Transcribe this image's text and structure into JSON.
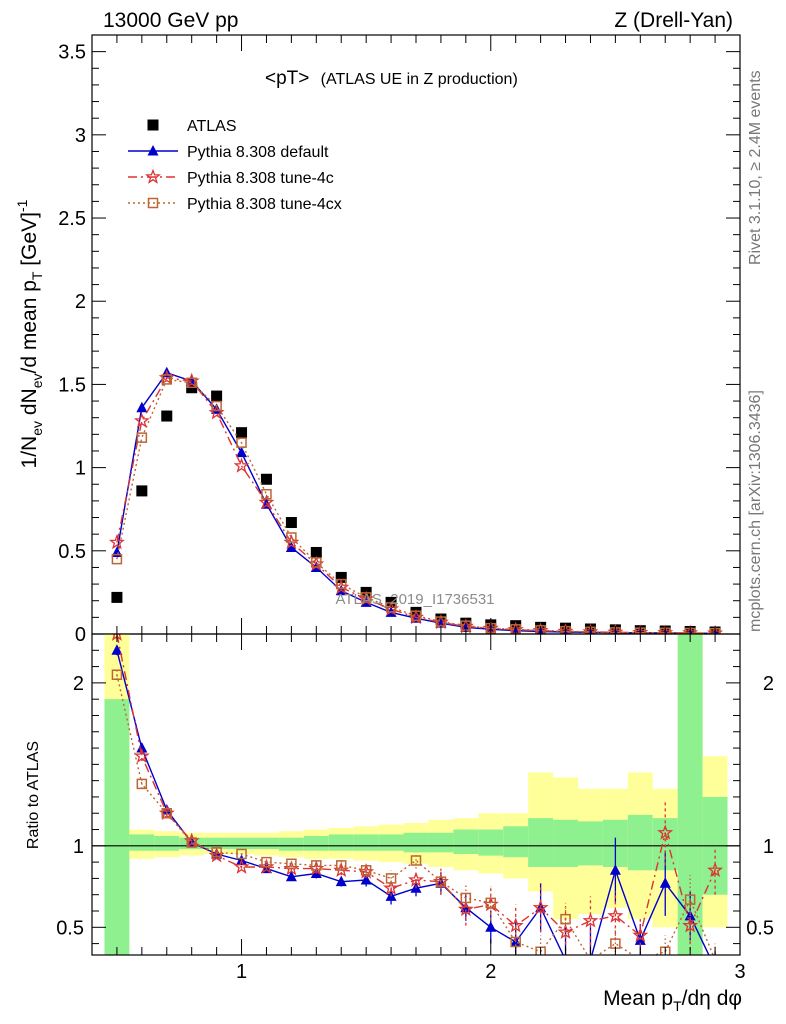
{
  "header": {
    "left": "13000 GeV pp",
    "right": "Z (Drell-Yan)"
  },
  "side_text": {
    "rivet": "Rivet 3.1.10, ≥ 2.4M events",
    "mcplots": "mcplots.cern.ch [arXiv:1306.3436]"
  },
  "watermark": "ATLAS_2019_I1736531",
  "colors": {
    "ATLAS": "#000000",
    "default": "#0000cc",
    "tune4c": "#dd3333",
    "tune4cx": "#bb6633",
    "band_inner": "#8ef08e",
    "band_outer": "#ffff99"
  },
  "chart_data": [
    {
      "type": "scatter",
      "panel": "main",
      "title_main": "<pT>",
      "title_sub": "(ATLAS UE in Z production)",
      "xlabel": "Mean p_T/dη dφ",
      "ylabel": "1/N_ev dN_ev/d mean p_T [GeV]^-1",
      "xlim": [
        0.4,
        3.0
      ],
      "ylim": [
        0,
        3.6
      ],
      "yticks": [
        "0",
        "0.5",
        "1",
        "1.5",
        "2",
        "2.5",
        "3",
        "3.5"
      ],
      "legend_position": "top-left",
      "x": [
        0.5,
        0.6,
        0.7,
        0.8,
        0.9,
        1.0,
        1.1,
        1.2,
        1.3,
        1.4,
        1.5,
        1.6,
        1.7,
        1.8,
        1.9,
        2.0,
        2.1,
        2.2,
        2.3,
        2.4,
        2.5,
        2.6,
        2.7,
        2.8,
        2.9
      ],
      "series": [
        {
          "name": "ATLAS",
          "key": "ATLAS",
          "marker": "square",
          "line": "none",
          "values": [
            0.22,
            0.86,
            1.31,
            1.48,
            1.43,
            1.21,
            0.93,
            0.67,
            0.49,
            0.34,
            0.25,
            0.19,
            0.13,
            0.09,
            0.065,
            0.055,
            0.05,
            0.04,
            0.035,
            0.03,
            0.025,
            0.02,
            0.018,
            0.015,
            0.012
          ]
        },
        {
          "name": "Pythia 8.308 default",
          "key": "default",
          "marker": "triangle",
          "line": "solid",
          "values": [
            0.49,
            1.36,
            1.57,
            1.52,
            1.35,
            1.09,
            0.78,
            0.52,
            0.4,
            0.26,
            0.19,
            0.13,
            0.095,
            0.065,
            0.04,
            0.028,
            0.02,
            0.015,
            0.012,
            0.01,
            0.008,
            0.007,
            0.006,
            0.005,
            0.004
          ]
        },
        {
          "name": "Pythia 8.308 tune-4c",
          "key": "tune4c",
          "marker": "star",
          "line": "dashdot",
          "values": [
            0.55,
            1.28,
            1.54,
            1.52,
            1.33,
            1.01,
            0.79,
            0.55,
            0.42,
            0.28,
            0.21,
            0.15,
            0.1,
            0.07,
            0.045,
            0.033,
            0.025,
            0.02,
            0.015,
            0.012,
            0.01,
            0.008,
            0.007,
            0.006,
            0.005
          ]
        },
        {
          "name": "Pythia 8.308 tune-4cx",
          "key": "tune4cx",
          "marker": "opensquare",
          "line": "dotted",
          "values": [
            0.45,
            1.18,
            1.53,
            1.51,
            1.37,
            1.15,
            0.84,
            0.58,
            0.43,
            0.3,
            0.22,
            0.16,
            0.11,
            0.075,
            0.05,
            0.035,
            0.028,
            0.022,
            0.017,
            0.013,
            0.01,
            0.008,
            0.007,
            0.006,
            0.005
          ]
        }
      ]
    },
    {
      "type": "line",
      "panel": "ratio",
      "ylabel": "Ratio to ATLAS",
      "xlim": [
        0.4,
        3.0
      ],
      "ylim": [
        0.33,
        2.3
      ],
      "yticks": [
        "0.5",
        "1",
        "2"
      ],
      "xticks": [
        "1",
        "2",
        "3"
      ],
      "bin_edges": [
        0.45,
        0.55,
        0.65,
        0.75,
        0.85,
        0.95,
        1.05,
        1.15,
        1.25,
        1.35,
        1.45,
        1.55,
        1.65,
        1.75,
        1.85,
        1.95,
        2.05,
        2.15,
        2.25,
        2.35,
        2.45,
        2.55,
        2.65,
        2.75,
        2.85,
        2.95
      ],
      "band_inner": [
        [
          0.25,
          1.9
        ],
        [
          0.97,
          1.07
        ],
        [
          0.97,
          1.06
        ],
        [
          0.98,
          1.05
        ],
        [
          0.98,
          1.05
        ],
        [
          0.98,
          1.05
        ],
        [
          0.98,
          1.05
        ],
        [
          0.97,
          1.05
        ],
        [
          0.97,
          1.06
        ],
        [
          0.97,
          1.07
        ],
        [
          0.97,
          1.07
        ],
        [
          0.97,
          1.07
        ],
        [
          0.96,
          1.08
        ],
        [
          0.96,
          1.08
        ],
        [
          0.95,
          1.1
        ],
        [
          0.94,
          1.1
        ],
        [
          0.93,
          1.12
        ],
        [
          0.87,
          1.17
        ],
        [
          0.87,
          1.16
        ],
        [
          0.88,
          1.15
        ],
        [
          0.87,
          1.16
        ],
        [
          0.85,
          1.19
        ],
        [
          0.85,
          1.17
        ],
        [
          0.33,
          2.3
        ],
        [
          0.7,
          1.3
        ],
        [
          0.7,
          1.23
        ]
      ],
      "band_outer": [
        [
          0.25,
          2.3
        ],
        [
          0.92,
          1.1
        ],
        [
          0.93,
          1.09
        ],
        [
          0.94,
          1.08
        ],
        [
          0.95,
          1.08
        ],
        [
          0.95,
          1.08
        ],
        [
          0.94,
          1.08
        ],
        [
          0.93,
          1.09
        ],
        [
          0.92,
          1.1
        ],
        [
          0.92,
          1.11
        ],
        [
          0.91,
          1.12
        ],
        [
          0.9,
          1.13
        ],
        [
          0.89,
          1.14
        ],
        [
          0.87,
          1.16
        ],
        [
          0.85,
          1.17
        ],
        [
          0.83,
          1.2
        ],
        [
          0.8,
          1.2
        ],
        [
          0.72,
          1.45
        ],
        [
          0.55,
          1.42
        ],
        [
          0.58,
          1.35
        ],
        [
          0.62,
          1.35
        ],
        [
          0.55,
          1.45
        ],
        [
          0.5,
          1.35
        ],
        [
          0.33,
          2.3
        ],
        [
          0.5,
          1.55
        ],
        [
          0.57,
          1.47
        ]
      ],
      "series": [
        {
          "name": "Pythia 8.308 default",
          "key": "default",
          "values": [
            2.2,
            1.6,
            1.22,
            1.02,
            0.95,
            0.91,
            0.86,
            0.81,
            0.83,
            0.78,
            0.79,
            0.69,
            0.74,
            0.77,
            0.62,
            0.5,
            0.41,
            0.62,
            0.3,
            0.3,
            0.85,
            0.42,
            0.77,
            0.57,
            0.25
          ],
          "errors": [
            0.03,
            0.03,
            0.02,
            0.01,
            0.01,
            0.01,
            0.02,
            0.02,
            0.03,
            0.03,
            0.04,
            0.05,
            0.05,
            0.07,
            0.08,
            0.1,
            0.13,
            0.15,
            0.2,
            0.2,
            0.2,
            0.1,
            0.2,
            0.15,
            0.1
          ]
        },
        {
          "name": "Pythia 8.308 tune-4c",
          "key": "tune4c",
          "values": [
            2.3,
            1.55,
            1.2,
            1.03,
            0.94,
            0.87,
            0.87,
            0.86,
            0.86,
            0.85,
            0.84,
            0.74,
            0.79,
            0.78,
            0.61,
            0.64,
            0.51,
            0.62,
            0.47,
            0.54,
            0.57,
            0.45,
            1.08,
            0.51,
            0.85
          ],
          "errors": [
            0.03,
            0.03,
            0.02,
            0.01,
            0.01,
            0.01,
            0.02,
            0.02,
            0.03,
            0.03,
            0.04,
            0.05,
            0.05,
            0.08,
            0.1,
            0.1,
            0.13,
            0.15,
            0.15,
            0.15,
            0.15,
            0.1,
            0.2,
            0.15,
            0.15
          ]
        },
        {
          "name": "Pythia 8.308 tune-4cx",
          "key": "tune4cx",
          "values": [
            2.05,
            1.38,
            1.2,
            1.02,
            0.96,
            0.95,
            0.9,
            0.89,
            0.88,
            0.88,
            0.85,
            0.8,
            0.91,
            0.78,
            0.68,
            0.65,
            0.41,
            0.35,
            0.55,
            0.3,
            0.4,
            0.3,
            0.35,
            0.67,
            0.3
          ],
          "errors": [
            0.03,
            0.03,
            0.02,
            0.01,
            0.01,
            0.01,
            0.02,
            0.02,
            0.03,
            0.03,
            0.04,
            0.05,
            0.05,
            0.07,
            0.08,
            0.1,
            0.1,
            0.1,
            0.1,
            0.1,
            0.1,
            0.1,
            0.1,
            0.15,
            0.1
          ]
        }
      ]
    }
  ]
}
